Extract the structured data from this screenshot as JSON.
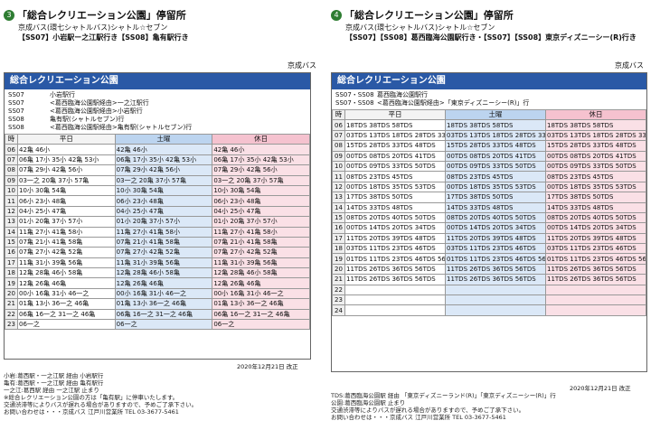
{
  "left": {
    "badge": "3",
    "stop_name": "「総合レクリエーション公園」停留所",
    "line_name": "京成バス(環七シャトルバス)シャトル☆セブン",
    "dest_line": "【SS07】小岩駅ー之江駅行き【SS08】亀有駅行き",
    "operator": "京成バス",
    "title": "総合レクリエーション公園",
    "legend": [
      {
        "code": "SS07",
        "text": "小岩駅行"
      },
      {
        "code": "SS07",
        "text": "<葛西臨海公園駅経由>一之江駅行"
      },
      {
        "code": "SS07",
        "text": "<葛西臨海公園駅経由>小岩駅行"
      },
      {
        "code": "SS08",
        "text": "亀有駅(シャトルセブン)行"
      },
      {
        "code": "SS08",
        "text": "<葛西臨海公園駅経由>亀有駅(シャトルセブン)行"
      }
    ],
    "col_hour": "時",
    "col_weekday": "平日",
    "col_saturday": "土曜",
    "col_holiday": "休日",
    "rows": [
      {
        "h": "06",
        "wd": "42亀 46小",
        "sa": "42亀 46小",
        "ho": "42亀 46小"
      },
      {
        "h": "07",
        "wd": "06亀 17小 35小 42亀 53小",
        "sa": "06亀 17小 35小 42亀 53小",
        "ho": "06亀 17小 35小 42亀 53小"
      },
      {
        "h": "08",
        "wd": "07亀 29小 42亀 56小",
        "sa": "07亀 29小 42亀 56小",
        "ho": "07亀 29小 42亀 56小"
      },
      {
        "h": "09",
        "wd": "03一之 20亀 37小 57亀",
        "sa": "03一之 20亀 37小 57亀",
        "ho": "03一之 20亀 37小 57亀"
      },
      {
        "h": "10",
        "wd": "10小 30亀 54亀",
        "sa": "10小 30亀 54亀",
        "ho": "10小 30亀 54亀"
      },
      {
        "h": "11",
        "wd": "06小 23小 48亀",
        "sa": "06小 23小 48亀",
        "ho": "06小 23小 48亀"
      },
      {
        "h": "12",
        "wd": "04小 25小 47亀",
        "sa": "04小 25小 47亀",
        "ho": "04小 25小 47亀"
      },
      {
        "h": "13",
        "wd": "01小 20亀 37小 57小",
        "sa": "01小 20亀 37小 57小",
        "ho": "01小 20亀 37小 57小"
      },
      {
        "h": "14",
        "wd": "11亀 27小 41亀 58小",
        "sa": "11亀 27小 41亀 58小",
        "ho": "11亀 27小 41亀 58小"
      },
      {
        "h": "15",
        "wd": "07亀 21小 41亀 58亀",
        "sa": "07亀 21小 41亀 58亀",
        "ho": "07亀 21小 41亀 58亀"
      },
      {
        "h": "16",
        "wd": "07亀 27小 42亀 52亀",
        "sa": "07亀 27小 42亀 52亀",
        "ho": "07亀 27小 42亀 52亀"
      },
      {
        "h": "17",
        "wd": "11亀 31小 39亀 56亀",
        "sa": "11亀 31小 39亀 56亀",
        "ho": "11亀 31小 39亀 56亀"
      },
      {
        "h": "18",
        "wd": "12亀 28亀 46小 58亀",
        "sa": "12亀 28亀 46小 58亀",
        "ho": "12亀 28亀 46小 58亀"
      },
      {
        "h": "19",
        "wd": "12亀 26亀 46亀",
        "sa": "12亀 26亀 46亀",
        "ho": "12亀 26亀 46亀"
      },
      {
        "h": "20",
        "wd": "00小 16亀 31小 46一之",
        "sa": "00小 16亀 31小 46一之",
        "ho": "00小 16亀 31小 46一之"
      },
      {
        "h": "21",
        "wd": "01亀 13小 36一之 46亀",
        "sa": "01亀 13小 36一之 46亀",
        "ho": "01亀 13小 36一之 46亀"
      },
      {
        "h": "22",
        "wd": "06亀 16一之 31一之 46亀",
        "sa": "06亀 16一之 31一之 46亀",
        "ho": "06亀 16一之 31一之 46亀"
      },
      {
        "h": "23",
        "wd": "06一之",
        "sa": "06一之",
        "ho": "06一之"
      }
    ],
    "date": "2020年12月21日 改正",
    "notes": [
      "小岩:葛西駅・一之江駅 経由 小岩駅行",
      "亀有:葛西駅・一之江駅 経由 亀有駅行",
      "一之江:葛西駅 経由 一之江駅 止まり",
      "※総合レクリエーション公園の方は「亀有駅」に停車いたします。",
      "交通渋滞等によりバスが遅れる場合がありますので、予めご了承下さい。",
      "お問い合わせは・・・京成バス 江戸川営業所 TEL 03-3677-5461"
    ]
  },
  "right": {
    "badge": "4",
    "stop_name": "「総合レクリエーション公園」停留所",
    "line_name": "京成バス(環七シャトルバス)シャトル☆セブン",
    "dest_line": "【SS07】【SS08】葛西臨海公園駅行き・【SS07】【SS08】東京ディズニーシー(R)行き",
    "operator": "京成バス",
    "title": "総合レクリエーション公園",
    "legend": [
      {
        "code": "SS07・SS08",
        "text": "葛西臨海公園駅行"
      },
      {
        "code": "SS07・SS08",
        "text": "<葛西臨海公園駅経由>「東京ディズニーシー(R)」行"
      }
    ],
    "col_hour": "時",
    "col_weekday": "平日",
    "col_saturday": "土曜",
    "col_holiday": "休日",
    "rows": [
      {
        "h": "06",
        "wd": "18TDS 38TDS 58TDS",
        "sa": "18TDS 38TDS 58TDS",
        "ho": "18TDS 38TDS 58TDS"
      },
      {
        "h": "07",
        "wd": "03TDS 13TDS 18TDS 28TDS 33TDS 48TDS 58TDS",
        "sa": "03TDS 13TDS 18TDS 28TDS 33TDS 48TDS 58TDS",
        "ho": "03TDS 13TDS 18TDS 28TDS 33TDS 48TDS 58TDS"
      },
      {
        "h": "08",
        "wd": "15TDS 28TDS 33TDS 48TDS",
        "sa": "15TDS 28TDS 33TDS 48TDS",
        "ho": "15TDS 28TDS 33TDS 48TDS"
      },
      {
        "h": "09",
        "wd": "00TDS 08TDS 20TDS 41TDS",
        "sa": "00TDS 08TDS 20TDS 41TDS",
        "ho": "00TDS 08TDS 20TDS 41TDS"
      },
      {
        "h": "10",
        "wd": "00TDS 09TDS 33TDS 50TDS",
        "sa": "00TDS 09TDS 33TDS 50TDS",
        "ho": "00TDS 09TDS 33TDS 50TDS"
      },
      {
        "h": "11",
        "wd": "08TDS 23TDS 45TDS",
        "sa": "08TDS 23TDS 45TDS",
        "ho": "08TDS 23TDS 45TDS"
      },
      {
        "h": "12",
        "wd": "00TDS 18TDS 35TDS 53TDS",
        "sa": "00TDS 18TDS 35TDS 53TDS",
        "ho": "00TDS 18TDS 35TDS 53TDS"
      },
      {
        "h": "13",
        "wd": "17TDS 38TDS 50TDS",
        "sa": "17TDS 38TDS 50TDS",
        "ho": "17TDS 38TDS 50TDS"
      },
      {
        "h": "14",
        "wd": "14TDS 33TDS 48TDS",
        "sa": "14TDS 33TDS 48TDS",
        "ho": "14TDS 33TDS 48TDS"
      },
      {
        "h": "15",
        "wd": "08TDS 20TDS 40TDS 50TDS",
        "sa": "08TDS 20TDS 40TDS 50TDS",
        "ho": "08TDS 20TDS 40TDS 50TDS"
      },
      {
        "h": "16",
        "wd": "00TDS 14TDS 20TDS 34TDS",
        "sa": "00TDS 14TDS 20TDS 34TDS",
        "ho": "00TDS 14TDS 20TDS 34TDS"
      },
      {
        "h": "17",
        "wd": "11TDS 20TDS 39TDS 48TDS",
        "sa": "11TDS 20TDS 39TDS 48TDS",
        "ho": "11TDS 20TDS 39TDS 48TDS"
      },
      {
        "h": "18",
        "wd": "03TDS 11TDS 23TDS 46TDS",
        "sa": "03TDS 11TDS 23TDS 46TDS",
        "ho": "03TDS 11TDS 23TDS 46TDS"
      },
      {
        "h": "19",
        "wd": "01TDS 11TDS 23TDS 46TDS 56TDS",
        "sa": "01TDS 11TDS 23TDS 46TDS 56TDS",
        "ho": "01TDS 11TDS 23TDS 46TDS 56TDS"
      },
      {
        "h": "20",
        "wd": "11TDS 26TDS 36TDS 56TDS",
        "sa": "11TDS 26TDS 36TDS 56TDS",
        "ho": "11TDS 26TDS 36TDS 56TDS"
      },
      {
        "h": "21",
        "wd": "11TDS 26TDS 36TDS 56TDS",
        "sa": "11TDS 26TDS 36TDS 56TDS",
        "ho": "11TDS 26TDS 36TDS 56TDS"
      },
      {
        "h": "22",
        "wd": "",
        "sa": "",
        "ho": ""
      },
      {
        "h": "23",
        "wd": "",
        "sa": "",
        "ho": ""
      },
      {
        "h": "24",
        "wd": "",
        "sa": "",
        "ho": ""
      }
    ],
    "date": "2020年12月21日 改正",
    "notes": [
      "TDS:葛西臨海公園駅 経由 「東京ディズニーランド(R)」「東京ディズニーシー(R)」行",
      "公園:葛西臨海公園駅 止まり",
      "交通渋滞等によりバスが遅れる場合がありますので、予めご了承下さい。",
      "お問い合わせは・・・京成バス 江戸川営業所 TEL 03-3677-5461"
    ]
  }
}
